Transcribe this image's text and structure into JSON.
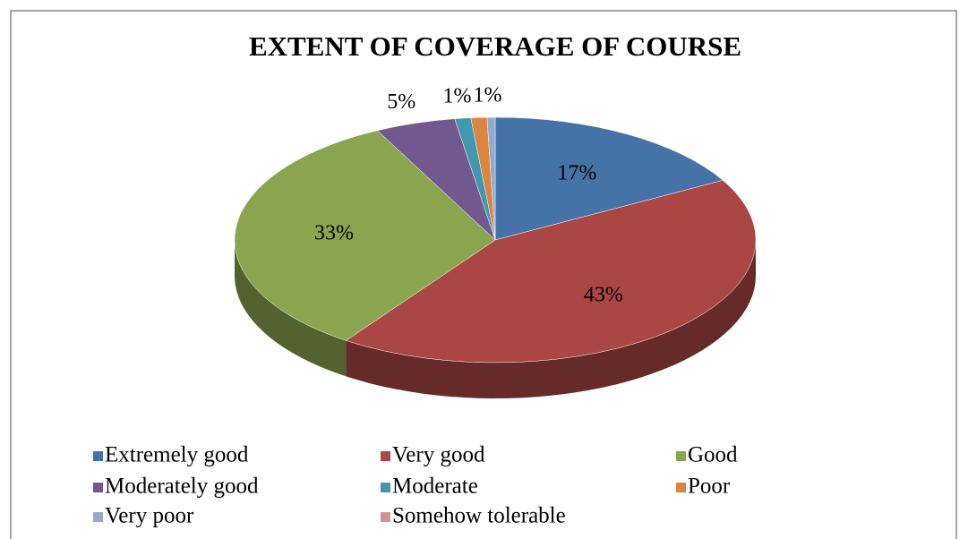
{
  "chart_data": {
    "type": "pie",
    "title": "EXTENT OF COVERAGE OF COURSE",
    "categories": [
      "Extremely good",
      "Very good",
      "Good",
      "Moderately good",
      "Moderate",
      "Poor",
      "Very poor",
      "Somehow tolerable"
    ],
    "values": [
      17,
      43,
      33,
      5,
      1,
      1,
      0.5,
      0
    ],
    "value_labels": [
      "17%",
      "43%",
      "33%",
      "5%",
      "1%",
      "1%",
      null,
      null
    ],
    "colors": [
      "#4572a7",
      "#aa4643",
      "#89a54e",
      "#71588f",
      "#4198af",
      "#db843d",
      "#93a9cf",
      "#d19392"
    ],
    "legend": "bottom"
  }
}
